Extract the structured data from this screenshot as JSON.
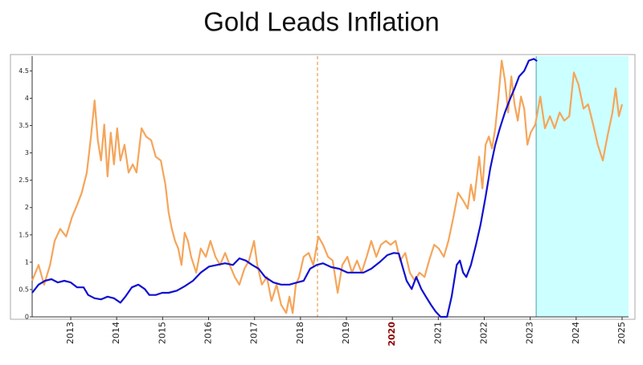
{
  "chart_data": {
    "type": "line",
    "title": "Gold Leads Inflation",
    "xlim": [
      2012.16,
      2025.14
    ],
    "ylim": [
      0,
      4.77
    ],
    "xticks": [
      2013,
      2014,
      2015,
      2016,
      2017,
      2018,
      2019,
      2020,
      2021,
      2022,
      2023,
      2024,
      2025
    ],
    "yticks": [
      0,
      0.5,
      1,
      1.5,
      2,
      2.5,
      3,
      3.5,
      4,
      4.5
    ],
    "highlighted_xtick": 2020,
    "highlight_color": "#8b0000",
    "vline": 2018.37,
    "vline_color": "#e08a2a",
    "shaded_region": [
      2023.13,
      2025.14
    ],
    "shade_color": "#ccffff",
    "series": [
      {
        "color": "#f5a55a",
        "x": [
          2012.16,
          2012.3,
          2012.42,
          2012.55,
          2012.65,
          2012.77,
          2012.9,
          2013.03,
          2013.14,
          2013.24,
          2013.35,
          2013.44,
          2013.52,
          2013.59,
          2013.66,
          2013.73,
          2013.8,
          2013.87,
          2013.94,
          2014.01,
          2014.08,
          2014.17,
          2014.26,
          2014.35,
          2014.43,
          2014.54,
          2014.64,
          2014.75,
          2014.85,
          2014.96,
          2015.06,
          2015.13,
          2015.2,
          2015.27,
          2015.34,
          2015.41,
          2015.48,
          2015.55,
          2015.62,
          2015.73,
          2015.83,
          2015.94,
          2016.04,
          2016.15,
          2016.25,
          2016.36,
          2016.46,
          2016.57,
          2016.67,
          2016.78,
          2016.88,
          2016.99,
          2017.06,
          2017.16,
          2017.27,
          2017.37,
          2017.48,
          2017.58,
          2017.69,
          2017.76,
          2017.83,
          2017.9,
          2017.97,
          2018.07,
          2018.18,
          2018.28,
          2018.39,
          2018.49,
          2018.6,
          2018.7,
          2018.81,
          2018.91,
          2019.02,
          2019.12,
          2019.23,
          2019.33,
          2019.44,
          2019.54,
          2019.65,
          2019.75,
          2019.86,
          2019.96,
          2020.07,
          2020.17,
          2020.28,
          2020.38,
          2020.49,
          2020.59,
          2020.7,
          2020.8,
          2020.91,
          2021.01,
          2021.12,
          2021.22,
          2021.33,
          2021.43,
          2021.54,
          2021.64,
          2021.71,
          2021.78,
          2021.89,
          2021.96,
          2022.03,
          2022.1,
          2022.17,
          2022.24,
          2022.31,
          2022.38,
          2022.45,
          2022.52,
          2022.59,
          2022.66,
          2022.73,
          2022.8,
          2022.87,
          2022.94,
          2023.01,
          2023.11,
          2023.22,
          2023.32,
          2023.43,
          2023.53,
          2023.64,
          2023.74,
          2023.85,
          2023.95,
          2024.05,
          2024.16,
          2024.26,
          2024.37,
          2024.47,
          2024.58,
          2024.68,
          2024.79,
          2024.86,
          2024.93,
          2025.0
        ],
        "values": [
          0.66,
          0.95,
          0.59,
          0.95,
          1.39,
          1.61,
          1.47,
          1.83,
          2.05,
          2.27,
          2.64,
          3.3,
          3.96,
          3.23,
          2.86,
          3.52,
          2.57,
          3.37,
          2.79,
          3.45,
          2.86,
          3.15,
          2.64,
          2.79,
          2.64,
          3.45,
          3.3,
          3.23,
          2.93,
          2.86,
          2.42,
          1.91,
          1.61,
          1.39,
          1.25,
          0.95,
          1.54,
          1.39,
          1.1,
          0.81,
          1.25,
          1.1,
          1.39,
          1.1,
          0.95,
          1.17,
          0.95,
          0.73,
          0.59,
          0.88,
          1.03,
          1.39,
          0.95,
          0.59,
          0.73,
          0.29,
          0.59,
          0.22,
          0.07,
          0.37,
          0.07,
          0.59,
          0.73,
          1.1,
          1.17,
          0.95,
          1.47,
          1.32,
          1.1,
          1.03,
          0.44,
          0.95,
          1.1,
          0.81,
          1.03,
          0.81,
          1.1,
          1.39,
          1.1,
          1.32,
          1.39,
          1.32,
          1.39,
          1.03,
          1.17,
          0.81,
          0.66,
          0.81,
          0.73,
          1.03,
          1.32,
          1.25,
          1.1,
          1.39,
          1.83,
          2.27,
          2.13,
          1.98,
          2.42,
          2.13,
          2.93,
          2.35,
          3.15,
          3.3,
          3.08,
          3.45,
          4.03,
          4.69,
          4.33,
          3.74,
          4.4,
          3.89,
          3.59,
          4.03,
          3.81,
          3.15,
          3.37,
          3.52,
          4.03,
          3.45,
          3.67,
          3.45,
          3.74,
          3.59,
          3.67,
          4.47,
          4.25,
          3.81,
          3.89,
          3.52,
          3.15,
          2.86,
          3.3,
          3.74,
          4.18,
          3.67,
          3.89
        ]
      },
      {
        "color": "#1010d0",
        "x": [
          2012.16,
          2012.3,
          2012.44,
          2012.58,
          2012.72,
          2012.86,
          2013.0,
          2013.14,
          2013.28,
          2013.38,
          2013.52,
          2013.66,
          2013.8,
          2013.94,
          2014.08,
          2014.19,
          2014.33,
          2014.47,
          2014.61,
          2014.71,
          2014.85,
          2014.99,
          2015.13,
          2015.31,
          2015.48,
          2015.66,
          2015.83,
          2016.01,
          2016.18,
          2016.36,
          2016.53,
          2016.67,
          2016.81,
          2016.95,
          2017.09,
          2017.23,
          2017.41,
          2017.58,
          2017.76,
          2017.93,
          2018.07,
          2018.21,
          2018.35,
          2018.49,
          2018.67,
          2018.84,
          2019.02,
          2019.19,
          2019.37,
          2019.54,
          2019.72,
          2019.89,
          2020.03,
          2020.14,
          2020.21,
          2020.31,
          2020.42,
          2020.52,
          2020.63,
          2020.73,
          2020.84,
          2020.94,
          2021.05,
          2021.19,
          2021.29,
          2021.4,
          2021.47,
          2021.54,
          2021.61,
          2021.71,
          2021.82,
          2021.92,
          2022.03,
          2022.13,
          2022.24,
          2022.34,
          2022.45,
          2022.55,
          2022.66,
          2022.76,
          2022.87,
          2022.97,
          2023.08,
          2023.15
        ],
        "values": [
          0.44,
          0.59,
          0.66,
          0.69,
          0.63,
          0.66,
          0.63,
          0.54,
          0.54,
          0.4,
          0.34,
          0.32,
          0.37,
          0.34,
          0.26,
          0.37,
          0.54,
          0.59,
          0.51,
          0.4,
          0.4,
          0.44,
          0.44,
          0.48,
          0.56,
          0.66,
          0.81,
          0.92,
          0.95,
          0.98,
          0.95,
          1.07,
          1.03,
          0.95,
          0.88,
          0.73,
          0.63,
          0.59,
          0.59,
          0.63,
          0.66,
          0.88,
          0.95,
          0.98,
          0.91,
          0.88,
          0.81,
          0.81,
          0.81,
          0.88,
          1.0,
          1.13,
          1.17,
          1.16,
          0.95,
          0.66,
          0.51,
          0.73,
          0.51,
          0.37,
          0.22,
          0.1,
          0,
          0,
          0.37,
          0.95,
          1.03,
          0.81,
          0.73,
          0.95,
          1.32,
          1.69,
          2.2,
          2.71,
          3.15,
          3.45,
          3.74,
          3.96,
          4.18,
          4.4,
          4.5,
          4.69,
          4.72,
          4.68
        ]
      }
    ]
  }
}
